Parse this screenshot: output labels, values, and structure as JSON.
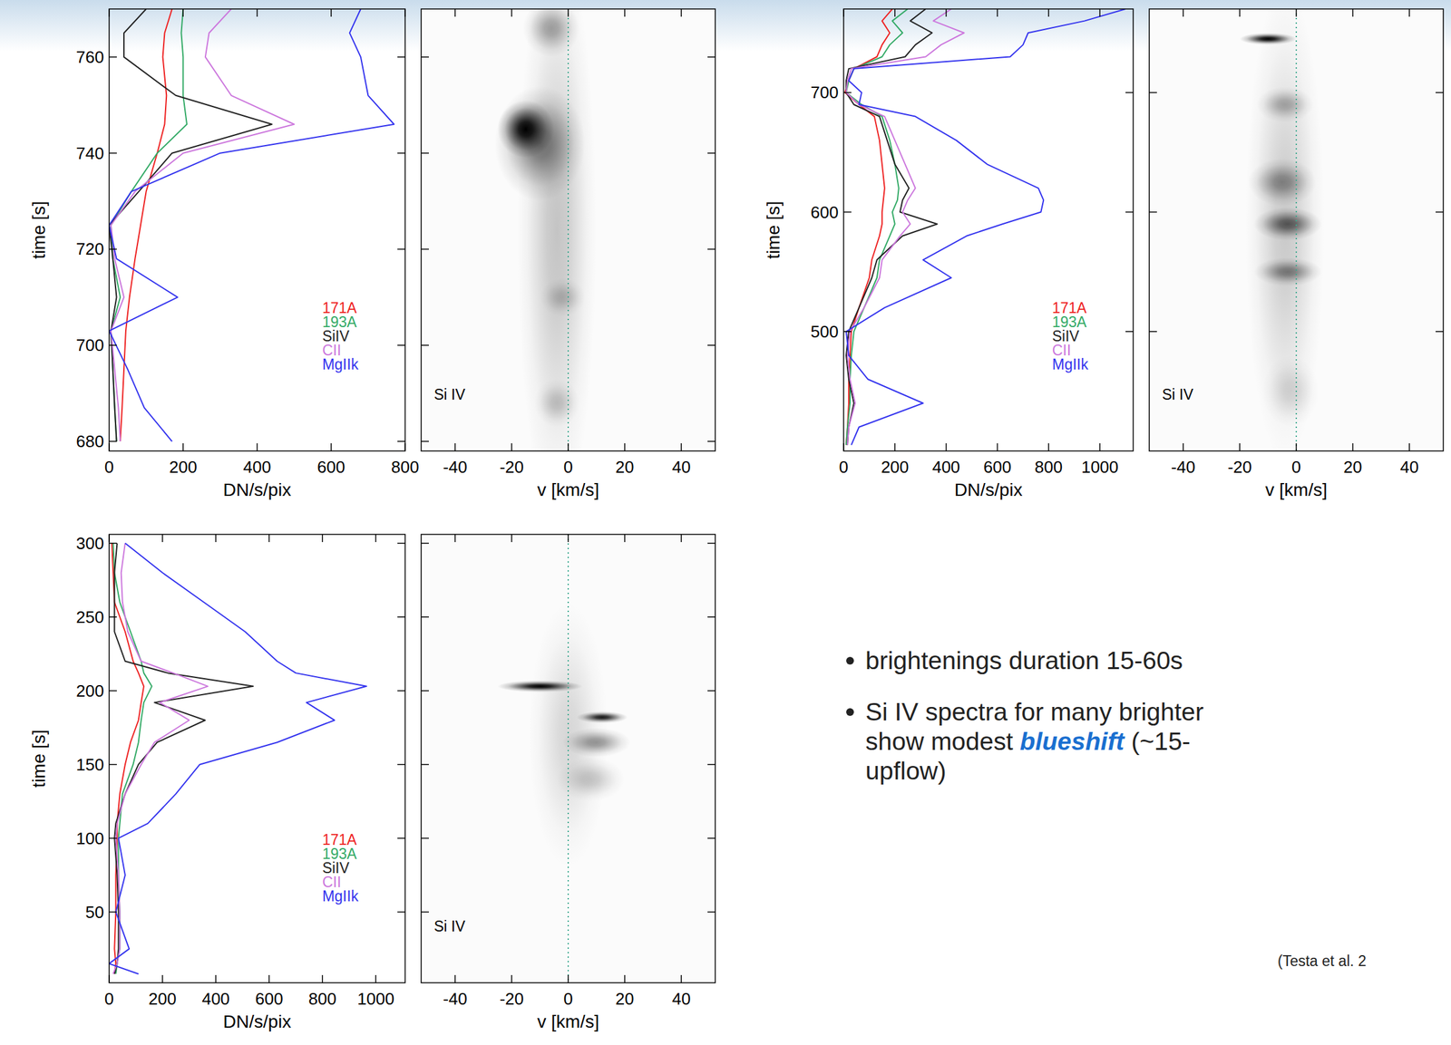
{
  "chart_data": [
    {
      "type": "line",
      "orientation": "horizontal",
      "xlabel": "DN/s/pix",
      "ylabel": "time [s]",
      "xlim": [
        0,
        800
      ],
      "xticks": [
        0,
        200,
        400,
        600,
        800
      ],
      "ylim": [
        678,
        770
      ],
      "yticks": [
        680,
        700,
        720,
        740,
        760
      ],
      "legend": "lower right",
      "y": [
        680,
        687,
        695,
        703,
        710,
        718,
        725,
        732,
        740,
        746,
        752,
        760,
        765,
        770
      ],
      "series": [
        {
          "name": "171A",
          "color": "#ee2222",
          "values": [
            30,
            35,
            40,
            45,
            55,
            70,
            85,
            100,
            130,
            150,
            155,
            145,
            150,
            170
          ]
        },
        {
          "name": "193A",
          "color": "#33aa66",
          "values": [
            20,
            15,
            10,
            5,
            30,
            10,
            5,
            60,
            130,
            210,
            200,
            200,
            195,
            200
          ]
        },
        {
          "name": "SiIV",
          "color": "#222222",
          "values": [
            20,
            15,
            10,
            5,
            20,
            10,
            0,
            80,
            170,
            440,
            180,
            40,
            40,
            100
          ]
        },
        {
          "name": "CII",
          "color": "#cc77dd",
          "values": [
            30,
            25,
            15,
            5,
            40,
            15,
            5,
            70,
            200,
            500,
            330,
            260,
            270,
            330
          ]
        },
        {
          "name": "MgIIk",
          "color": "#3333ee",
          "values": [
            170,
            95,
            50,
            0,
            185,
            20,
            0,
            60,
            300,
            770,
            700,
            680,
            650,
            680
          ]
        }
      ]
    },
    {
      "type": "heatmap",
      "label": "Si IV",
      "xlabel": "v [km/s]",
      "xlim": [
        -52,
        52
      ],
      "xticks": [
        -40,
        -20,
        0,
        20,
        40
      ],
      "ylim": [
        678,
        770
      ],
      "yticks": [
        680,
        700,
        720,
        740,
        760
      ],
      "tick_labels": "x",
      "reference_x": 0,
      "components": [
        {
          "t": 724,
          "v": -4,
          "dt": 60,
          "dv": 14,
          "peak": 0.22
        },
        {
          "t": 742,
          "v": -10,
          "dt": 12,
          "dv": 16,
          "peak": 0.5
        },
        {
          "t": 745,
          "v": -15,
          "dt": 6,
          "dv": 10,
          "peak": 1
        },
        {
          "t": 710,
          "v": -2,
          "dt": 4,
          "dv": 8,
          "peak": 0.2
        },
        {
          "t": 688,
          "v": -4,
          "dt": 5,
          "dv": 8,
          "peak": 0.2
        },
        {
          "t": 766,
          "v": -6,
          "dt": 6,
          "dv": 10,
          "peak": 0.35
        }
      ]
    },
    {
      "type": "line",
      "orientation": "horizontal",
      "xlabel": "DN/s/pix",
      "ylabel": "time [s]",
      "xlim": [
        0,
        1130
      ],
      "xticks": [
        0,
        200,
        400,
        600,
        800,
        1000
      ],
      "ylim": [
        400,
        770
      ],
      "yticks": [
        500,
        600,
        700
      ],
      "legend": "lower right",
      "y": [
        405,
        420,
        440,
        460,
        480,
        500,
        520,
        545,
        560,
        580,
        590,
        600,
        610,
        620,
        640,
        660,
        680,
        690,
        700,
        710,
        720,
        730,
        740,
        750,
        760,
        770
      ],
      "series": [
        {
          "name": "171A",
          "color": "#ee2222",
          "values": [
            10,
            15,
            20,
            20,
            25,
            30,
            60,
            100,
            110,
            140,
            150,
            150,
            155,
            160,
            150,
            140,
            120,
            60,
            5,
            20,
            40,
            130,
            150,
            180,
            150,
            190
          ]
        },
        {
          "name": "193A",
          "color": "#33aa66",
          "values": [
            10,
            15,
            25,
            25,
            30,
            40,
            80,
            130,
            140,
            180,
            200,
            190,
            210,
            215,
            200,
            180,
            150,
            70,
            10,
            20,
            40,
            150,
            180,
            230,
            190,
            250
          ]
        },
        {
          "name": "SiIV",
          "color": "#222222",
          "values": [
            15,
            20,
            40,
            20,
            10,
            20,
            60,
            110,
            130,
            230,
            365,
            220,
            230,
            255,
            200,
            170,
            140,
            40,
            10,
            10,
            20,
            240,
            280,
            345,
            260,
            320
          ]
        },
        {
          "name": "CII",
          "color": "#cc77dd",
          "values": [
            15,
            20,
            45,
            25,
            15,
            25,
            80,
            140,
            150,
            220,
            260,
            230,
            250,
            280,
            240,
            200,
            160,
            60,
            10,
            15,
            30,
            320,
            380,
            470,
            350,
            420
          ]
        },
        {
          "name": "MgIIk",
          "color": "#3333ee",
          "values": [
            30,
            60,
            310,
            95,
            20,
            10,
            160,
            420,
            310,
            480,
            620,
            770,
            780,
            760,
            560,
            440,
            280,
            60,
            70,
            20,
            40,
            650,
            700,
            720,
            940,
            1100
          ]
        }
      ]
    },
    {
      "type": "heatmap",
      "label": "Si IV",
      "xlabel": "v [km/s]",
      "xlim": [
        -52,
        52
      ],
      "xticks": [
        -40,
        -20,
        0,
        20,
        40
      ],
      "ylim": [
        400,
        770
      ],
      "yticks": [
        500,
        600,
        700
      ],
      "tick_labels": "x",
      "reference_x": 0,
      "components": [
        {
          "t": 590,
          "v": -4,
          "dt": 200,
          "dv": 14,
          "peak": 0.2
        },
        {
          "t": 745,
          "v": -10,
          "dt": 5,
          "dv": 10,
          "peak": 1
        },
        {
          "t": 590,
          "v": -3,
          "dt": 14,
          "dv": 12,
          "peak": 0.6
        },
        {
          "t": 625,
          "v": -5,
          "dt": 20,
          "dv": 12,
          "peak": 0.4
        },
        {
          "t": 550,
          "v": -3,
          "dt": 12,
          "dv": 12,
          "peak": 0.45
        },
        {
          "t": 690,
          "v": -4,
          "dt": 15,
          "dv": 10,
          "peak": 0.3
        },
        {
          "t": 450,
          "v": -2,
          "dt": 30,
          "dv": 10,
          "peak": 0.15
        }
      ]
    },
    {
      "type": "line",
      "orientation": "horizontal",
      "xlabel": "DN/s/pix",
      "ylabel": "time [s]",
      "xlim": [
        0,
        1110
      ],
      "xticks": [
        0,
        200,
        400,
        600,
        800,
        1000
      ],
      "ylim": [
        2,
        306
      ],
      "yticks": [
        50,
        100,
        150,
        200,
        250,
        300
      ],
      "legend": "lower right",
      "y": [
        8,
        15,
        25,
        50,
        75,
        100,
        110,
        130,
        150,
        165,
        180,
        192,
        203,
        212,
        220,
        240,
        260,
        280,
        300
      ],
      "series": [
        {
          "name": "171A",
          "color": "#ee2222",
          "values": [
            20,
            25,
            20,
            25,
            25,
            30,
            30,
            40,
            60,
            80,
            110,
            120,
            130,
            110,
            90,
            60,
            20,
            15,
            10
          ]
        },
        {
          "name": "193A",
          "color": "#33aa66",
          "values": [
            25,
            30,
            40,
            40,
            35,
            35,
            40,
            50,
            90,
            110,
            120,
            130,
            160,
            130,
            120,
            80,
            40,
            20,
            15
          ]
        },
        {
          "name": "SiIV",
          "color": "#222222",
          "values": [
            20,
            30,
            35,
            35,
            30,
            20,
            25,
            60,
            110,
            180,
            360,
            170,
            540,
            220,
            60,
            20,
            20,
            20,
            30
          ]
        },
        {
          "name": "CII",
          "color": "#cc77dd",
          "values": [
            15,
            30,
            40,
            40,
            35,
            25,
            30,
            60,
            120,
            170,
            300,
            190,
            370,
            240,
            120,
            70,
            50,
            45,
            60
          ]
        },
        {
          "name": "MgIIk",
          "color": "#3333ee",
          "values": [
            110,
            0,
            75,
            25,
            60,
            35,
            145,
            250,
            340,
            630,
            845,
            740,
            965,
            700,
            630,
            510,
            355,
            200,
            60
          ]
        }
      ]
    },
    {
      "type": "heatmap",
      "label": "Si IV",
      "xlabel": "v [km/s]",
      "xlim": [
        -52,
        52
      ],
      "xticks": [
        -40,
        -20,
        0,
        20,
        40
      ],
      "ylim": [
        2,
        306
      ],
      "yticks": [
        50,
        100,
        150,
        200,
        250,
        300
      ],
      "tick_labels": "x",
      "reference_x": 0,
      "components": [
        {
          "t": 170,
          "v": 0,
          "dt": 90,
          "dv": 14,
          "peak": 0.15
        },
        {
          "t": 140,
          "v": 8,
          "dt": 15,
          "dv": 12,
          "peak": 0.2
        },
        {
          "t": 165,
          "v": 10,
          "dt": 10,
          "dv": 12,
          "peak": 0.4
        },
        {
          "t": 182,
          "v": 12,
          "dt": 4,
          "dv": 9,
          "peak": 0.9
        },
        {
          "t": 203,
          "v": -10,
          "dt": 4,
          "dv": 15,
          "peak": 1
        }
      ]
    }
  ],
  "notes": {
    "bullets": [
      [
        "brightenings duration 15-60s"
      ],
      [
        "Si IV spectra for many brighter",
        [
          "show modest ",
          {
            "text": "blueshift",
            "emphasis": true
          },
          " (~15-"
        ],
        "upflow)"
      ]
    ],
    "citation": "(Testa et al. 2"
  }
}
